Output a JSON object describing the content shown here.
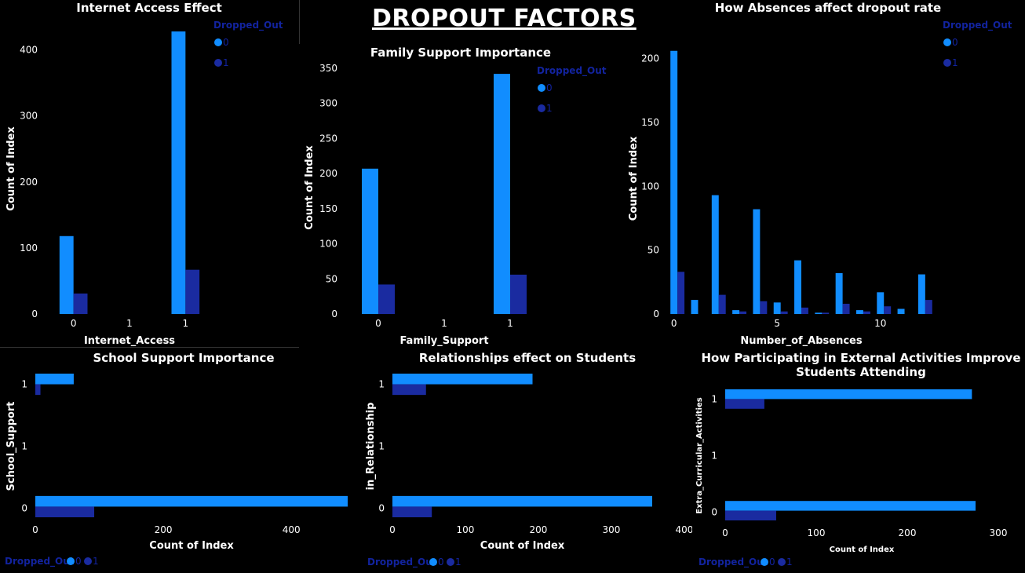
{
  "page_title": "DROPOUT FACTORS",
  "colors": {
    "series0": "#118DFF",
    "series1": "#1A2BA0",
    "legend_text": "#12239E",
    "axis_text": "#FFFFFF",
    "background": "#000000"
  },
  "legend": {
    "title": "Dropped_Out",
    "items": [
      "0",
      "1"
    ]
  },
  "chart_data": [
    {
      "id": "internet",
      "type": "bar",
      "title": "Internet Access Effect",
      "xlabel": "Internet_Access",
      "ylabel": "Count of Index",
      "categories": [
        "0",
        "1",
        "1"
      ],
      "series": [
        {
          "name": "0",
          "values": [
            118,
            0,
            428
          ]
        },
        {
          "name": "1",
          "values": [
            31,
            0,
            67
          ]
        }
      ],
      "yticks": [
        0,
        100,
        200,
        300,
        400
      ],
      "ylim": [
        0,
        440
      ],
      "legend_position": "top-right"
    },
    {
      "id": "family",
      "type": "bar",
      "title": "Family Support Importance",
      "xlabel": "Family_Support",
      "ylabel": "Count of Index",
      "categories": [
        "0",
        "1",
        "1"
      ],
      "series": [
        {
          "name": "0",
          "values": [
            207,
            0,
            342
          ]
        },
        {
          "name": "1",
          "values": [
            42,
            0,
            56
          ]
        }
      ],
      "yticks": [
        0,
        50,
        100,
        150,
        200,
        250,
        300,
        350
      ],
      "ylim": [
        0,
        360
      ],
      "legend_position": "top-right"
    },
    {
      "id": "absences",
      "type": "bar",
      "title": "How Absences affect dropout rate",
      "xlabel": "Number_of_Absences",
      "ylabel": "Count of Index",
      "x": [
        0,
        1,
        2,
        3,
        4,
        5,
        6,
        7,
        8,
        9,
        10,
        11,
        12
      ],
      "series": [
        {
          "name": "0",
          "values": [
            206,
            11,
            93,
            3,
            82,
            9,
            42,
            1,
            32,
            3,
            17,
            4,
            31
          ]
        },
        {
          "name": "1",
          "values": [
            33,
            0,
            15,
            2,
            10,
            2,
            5,
            1,
            8,
            2,
            6,
            0,
            11
          ]
        }
      ],
      "xticks": [
        0,
        5,
        10
      ],
      "yticks": [
        0,
        50,
        100,
        150,
        200
      ],
      "ylim": [
        0,
        212
      ],
      "legend_position": "top-right"
    },
    {
      "id": "school",
      "type": "bar",
      "orientation": "horizontal",
      "title": "School Support Importance",
      "xlabel": "Count of Index",
      "ylabel": "School_Support",
      "categories": [
        "1",
        "1",
        "0"
      ],
      "series": [
        {
          "name": "0",
          "values": [
            60,
            0,
            488
          ]
        },
        {
          "name": "1",
          "values": [
            8,
            0,
            92
          ]
        }
      ],
      "xticks": [
        0,
        200,
        400
      ],
      "xlim": [
        0,
        488
      ],
      "legend_position": "bottom-left"
    },
    {
      "id": "relationship",
      "type": "bar",
      "orientation": "horizontal",
      "title": "Relationships effect on Students",
      "xlabel": "Count of Index",
      "ylabel": "in_Relationship",
      "categories": [
        "1",
        "1",
        "0"
      ],
      "series": [
        {
          "name": "0",
          "values": [
            192,
            0,
            356
          ]
        },
        {
          "name": "1",
          "values": [
            46,
            0,
            54
          ]
        }
      ],
      "xticks": [
        0,
        100,
        200,
        300,
        400
      ],
      "xlim": [
        0,
        356
      ],
      "legend_position": "bottom-left"
    },
    {
      "id": "extra",
      "type": "bar",
      "orientation": "horizontal",
      "title": "How Participating in External Activities Improve Students Attending",
      "title_lines": [
        "How Participating in External Activities Improve",
        "Students Attending"
      ],
      "xlabel": "Count of Index",
      "ylabel": "Extra_Curricular_Activities",
      "categories": [
        "1",
        "1",
        "0"
      ],
      "series": [
        {
          "name": "0",
          "values": [
            271,
            0,
            275
          ]
        },
        {
          "name": "1",
          "values": [
            43,
            0,
            56
          ]
        }
      ],
      "xticks": [
        0,
        100,
        200,
        300
      ],
      "xlim": [
        0,
        300
      ],
      "legend_position": "bottom-left"
    }
  ]
}
